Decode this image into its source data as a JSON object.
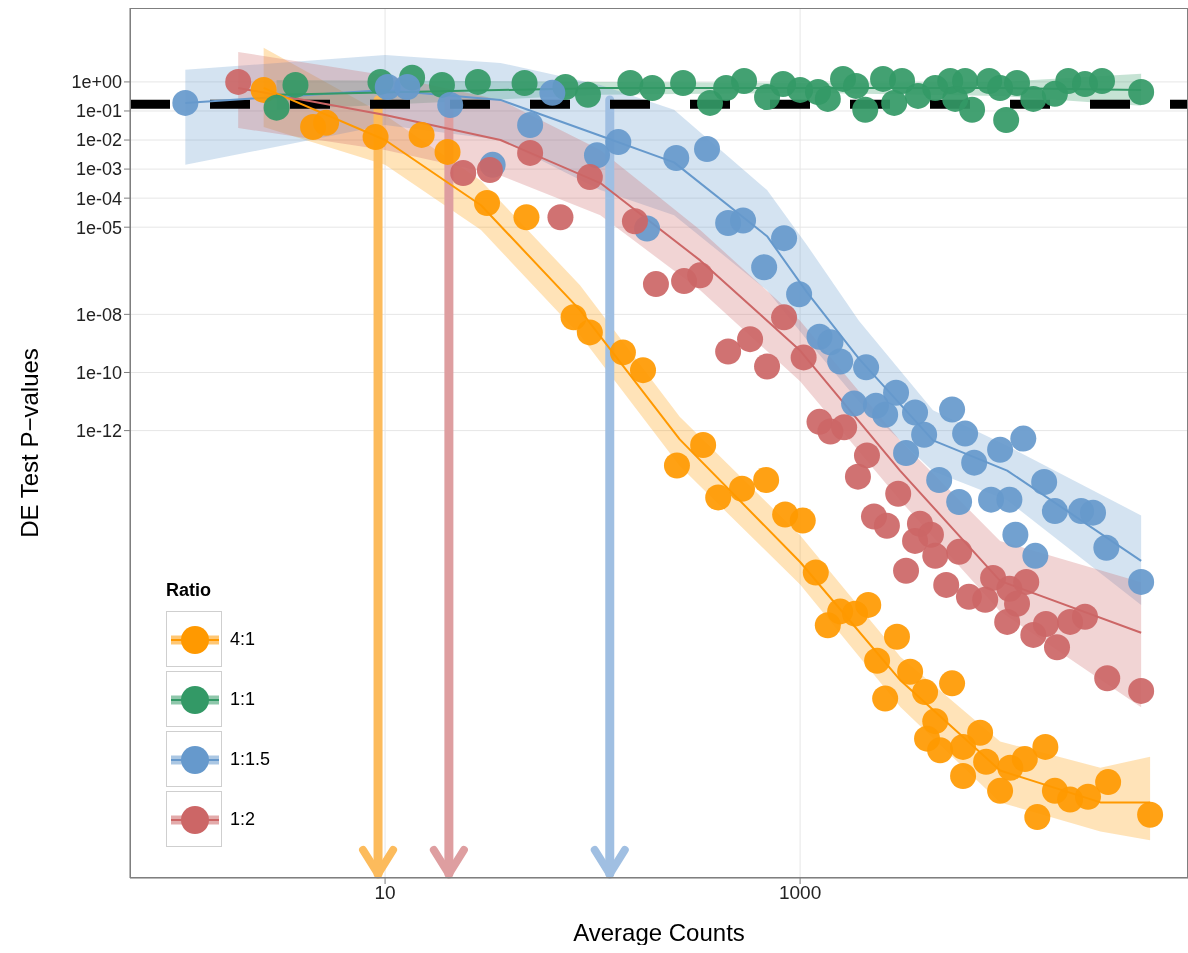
{
  "chart_data": {
    "type": "scatter",
    "xlabel": "Average Counts",
    "ylabel": "DE Test P−values",
    "legend_title": "Ratio",
    "legend": "bottom left",
    "grid": true,
    "log": "xy",
    "marker": "circle",
    "xlim": [
      0.59,
      74000
    ],
    "xticks": [
      10,
      1000
    ],
    "ylim": [
      4e-28,
      350
    ],
    "yticks": [
      {
        "value": 1,
        "label": "1e+00"
      },
      {
        "value": 0.1,
        "label": "1e-01"
      },
      {
        "value": 0.01,
        "label": "1e-02"
      },
      {
        "value": 0.001,
        "label": "1e-03"
      },
      {
        "value": 0.0001,
        "label": "1e-04"
      },
      {
        "value": 1e-05,
        "label": "1e-05"
      },
      {
        "value": 1e-08,
        "label": "1e-08"
      },
      {
        "value": 1e-10,
        "label": "1e-10"
      },
      {
        "value": 1e-12,
        "label": "1e-12"
      }
    ],
    "ref_lines": [
      {
        "axis": "y",
        "value": 0.17,
        "color": "#000000",
        "line_style": "dashed"
      },
      {
        "axis": "x",
        "value": 9.25,
        "color": "#fcbb5c"
      },
      {
        "axis": "x",
        "value": 20.3,
        "color": "#de9ea0"
      },
      {
        "axis": "x",
        "value": 121,
        "color": "#a0bfe2"
      }
    ],
    "series": [
      {
        "type": "line",
        "marker": "none",
        "color": "#ff9900",
        "x": [
          2.6,
          10,
          29,
          87,
          263,
          1000,
          3050,
          9200,
          28000,
          48600
        ],
        "values": [
          0.62,
          0.01,
          5.7e-05,
          1.4e-08,
          5e-13,
          3e-17,
          2.5e-21,
          2e-24,
          1.6e-25,
          1.6e-25
        ],
        "upper": [
          15,
          0.072,
          0.0004,
          1e-07,
          3e-12,
          2.5e-16,
          1.6e-20,
          2e-23,
          2.5e-24,
          6e-24
        ],
        "lower": [
          0.028,
          0.0014,
          8e-06,
          1.9e-09,
          6e-14,
          5e-18,
          3e-22,
          1.6e-25,
          1.6e-26,
          8e-27
        ]
      },
      {
        "type": "line",
        "color": "#339966",
        "x": [
          3.0,
          108,
          1000,
          9200,
          44000
        ],
        "values": [
          0.36,
          0.62,
          0.62,
          0.62,
          0.53
        ],
        "upper": [
          1.17,
          1.0,
          0.92,
          1.0,
          1.9
        ],
        "lower": [
          0.11,
          0.36,
          0.42,
          0.33,
          0.15
        ],
        "marker": "none"
      },
      {
        "type": "line",
        "marker": "none",
        "color": "#6699cc",
        "x": [
          1.09,
          10,
          36,
          109,
          247,
          693,
          1080,
          1920,
          4370,
          9950,
          44000
        ],
        "values": [
          0.19,
          0.53,
          0.24,
          0.014,
          0.0017,
          4.9e-06,
          5.7e-08,
          3e-10,
          4.6e-13,
          4.2e-14,
          3.3e-17
        ],
        "upper": [
          2.6,
          8.5,
          4.5,
          0.79,
          0.11,
          0.00019,
          2.4e-06,
          6e-09,
          5e-12,
          3e-13,
          1.2e-15
        ],
        "lower": [
          0.0014,
          0.033,
          0.01,
          0.00019,
          2.6e-05,
          6.7e-08,
          1.3e-09,
          1e-11,
          4e-14,
          4e-15,
          1e-18
        ]
      },
      {
        "type": "line",
        "marker": "none",
        "color": "#cc6666",
        "x": [
          1.96,
          10,
          36,
          109,
          330,
          1000,
          3030,
          9200,
          44000
        ],
        "values": [
          0.62,
          0.073,
          0.01,
          0.00033,
          7.2e-07,
          5.7e-10,
          4.2e-14,
          6.7e-18,
          1.1e-19
        ],
        "upper": [
          10.8,
          1.7,
          0.24,
          0.0045,
          8e-06,
          6e-09,
          4.6e-13,
          1.6e-16,
          6e-18
        ],
        "lower": [
          0.026,
          0.0045,
          0.0006,
          2.6e-05,
          6.7e-08,
          5e-11,
          4e-15,
          6e-19,
          3e-22
        ]
      },
      {
        "name": "4:1",
        "color": "#ff9900",
        "x": [
          2.6,
          4.5,
          5.2,
          9.0,
          15,
          20,
          31,
          48,
          81,
          97,
          140,
          175,
          255,
          341,
          403,
          525,
          686,
          847,
          1030,
          1190,
          1360,
          1560,
          1840,
          2130,
          2350,
          2930,
          2570,
          3390,
          4000,
          4480,
          4090,
          5400,
          4730,
          6100,
          7370,
          6100,
          7880,
          9200,
          10300,
          12100,
          15200,
          13900,
          16900,
          20000,
          24400,
          30500,
          48600
        ],
        "values": [
          0.53,
          0.028,
          0.039,
          0.0126,
          0.015,
          0.0039,
          6.8e-05,
          2.2e-05,
          8e-09,
          2.4e-09,
          4.9e-10,
          1.2e-10,
          6.3e-14,
          3.2e-13,
          5e-15,
          1e-14,
          2e-14,
          1.3e-15,
          8e-16,
          1.3e-17,
          2e-19,
          6e-19,
          5e-19,
          1e-18,
          1.2e-20,
          8e-20,
          6e-22,
          5e-21,
          1e-21,
          1e-22,
          2.5e-23,
          2e-21,
          1e-23,
          1.3e-23,
          4e-23,
          1.3e-24,
          4e-24,
          4e-25,
          2.5e-24,
          5e-24,
          1.3e-23,
          5e-26,
          4e-25,
          2e-25,
          2.5e-25,
          8e-25,
          6e-26
        ]
      },
      {
        "name": "1:1",
        "color": "#339966",
        "x": [
          3.0,
          3.7,
          9.5,
          13.5,
          18.8,
          28,
          47,
          74,
          95,
          152,
          194,
          273,
          368,
          440,
          537,
          693,
          828,
          1000,
          1220,
          1360,
          1610,
          1860,
          2060,
          2510,
          2840,
          3100,
          3700,
          4480,
          5290,
          5590,
          6240,
          6740,
          8150,
          9200,
          9840,
          11100,
          13300,
          16900,
          19600,
          23600,
          28500,
          44000
        ],
        "values": [
          0.13,
          0.79,
          1.0,
          1.4,
          0.79,
          1.0,
          0.92,
          0.67,
          0.36,
          0.92,
          0.62,
          0.92,
          0.19,
          0.62,
          1.08,
          0.3,
          0.85,
          0.53,
          0.45,
          0.26,
          1.27,
          0.73,
          0.11,
          1.27,
          0.19,
          1.08,
          0.33,
          0.62,
          1.08,
          0.26,
          1.08,
          0.11,
          1.08,
          0.62,
          0.049,
          0.92,
          0.26,
          0.39,
          1.08,
          0.85,
          1.08,
          0.45
        ]
      },
      {
        "name": "1:1.5",
        "color": "#6699cc",
        "x": [
          1.09,
          10.3,
          12.8,
          20.6,
          33,
          50,
          64,
          105,
          133,
          183,
          253,
          356,
          450,
          531,
          837,
          671,
          989,
          1240,
          1400,
          1560,
          2080,
          1820,
          2320,
          2900,
          2570,
          3580,
          5400,
          6240,
          3240,
          3960,
          6900,
          9200,
          11900,
          4680,
          5840,
          8320,
          10200,
          15000,
          16900,
          22600,
          25800,
          10900,
          13600,
          29900,
          44000
        ],
        "values": [
          0.19,
          0.67,
          0.67,
          0.16,
          0.0014,
          0.033,
          0.42,
          0.003,
          0.0085,
          9e-06,
          0.0024,
          0.0049,
          1.4e-05,
          1.7e-05,
          4.2e-06,
          4.2e-07,
          4.9e-08,
          1.7e-09,
          1.1e-09,
          2.4e-10,
          1.5e-10,
          8.5e-12,
          7.2e-12,
          2e-11,
          3.5e-12,
          4.2e-12,
          5.3e-12,
          7.9e-13,
          1.7e-13,
          7.2e-13,
          7.9e-14,
          2.2e-13,
          5.3e-13,
          2e-14,
          3.5e-15,
          4.2e-15,
          4.2e-15,
          1.7e-14,
          1.7e-15,
          1.7e-15,
          1.5e-15,
          2.6e-16,
          4.9e-17,
          9.3e-17,
          6.2e-18
        ]
      },
      {
        "name": "1:2",
        "color": "#cc6666",
        "x": [
          1.96,
          23.8,
          32,
          50,
          70,
          97,
          160,
          202,
          276,
          330,
          837,
          450,
          574,
          693,
          1040,
          1240,
          1400,
          1630,
          2100,
          1900,
          2970,
          2270,
          2620,
          3780,
          4270,
          3580,
          4480,
          5840,
          3240,
          5060,
          6510,
          8510,
          7800,
          10200,
          12300,
          11100,
          9950,
          13300,
          15300,
          17300,
          20000,
          23600,
          30200,
          44000
        ],
        "values": [
          1.0,
          0.00073,
          0.00093,
          0.0036,
          2.2e-05,
          0.00053,
          1.6e-05,
          1.1e-07,
          1.4e-07,
          2.2e-07,
          7.9e-09,
          5.3e-10,
          1.4e-09,
          1.6e-10,
          3.3e-10,
          2e-12,
          9.3e-13,
          1.3e-12,
          1.4e-13,
          2.6e-14,
          6.7e-15,
          1.1e-15,
          5.3e-16,
          6.2e-16,
          2.6e-16,
          1.6e-16,
          4.9e-17,
          6.7e-17,
          1.5e-17,
          4.9e-18,
          1.9e-18,
          8.5e-18,
          1.5e-18,
          3.6e-18,
          6.2e-18,
          1.1e-18,
          2.6e-19,
          9.3e-20,
          2.2e-19,
          3.5e-20,
          2.6e-19,
          3.9e-19,
          3e-21,
          1.1e-21
        ]
      }
    ]
  }
}
